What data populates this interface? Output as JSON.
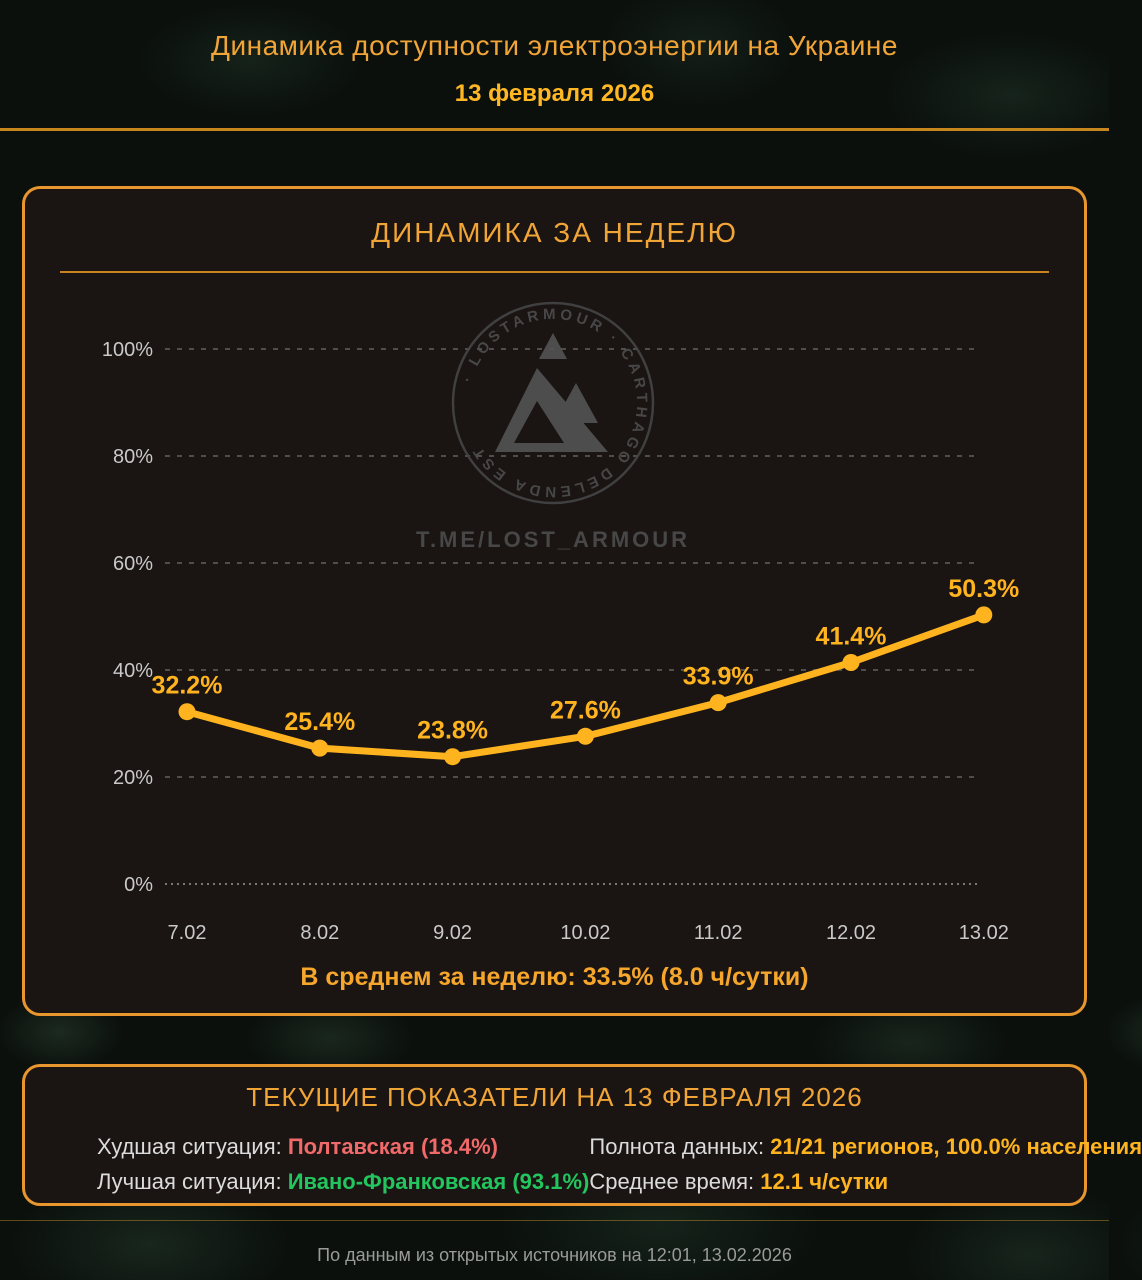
{
  "header": {
    "title": "Динамика доступности электроэнергии на Украине",
    "date": "13 февраля 2026"
  },
  "week_panel": {
    "title": "ДИНАМИКА ЗА НЕДЕЛЮ",
    "average_note": "В среднем за неделю: 33.5% (8.0 ч/сутки)"
  },
  "chart_data": {
    "type": "line",
    "title": "ДИНАМИКА ЗА НЕДЕЛЮ",
    "categories": [
      "7.02",
      "8.02",
      "9.02",
      "10.02",
      "11.02",
      "12.02",
      "13.02"
    ],
    "values": [
      32.2,
      25.4,
      23.8,
      27.6,
      33.9,
      41.4,
      50.3
    ],
    "value_labels": [
      "32.2%",
      "25.4%",
      "23.8%",
      "27.6%",
      "33.9%",
      "41.4%",
      "50.3%"
    ],
    "y_ticks": [
      0,
      20,
      40,
      60,
      80,
      100
    ],
    "y_tick_suffix": "%",
    "ylim": [
      0,
      100
    ],
    "xlabel": "",
    "ylabel": "",
    "grid": "horizontal-dashed",
    "legend": "none",
    "line_color": "#ffb41f",
    "point_color": "#ffb41f",
    "label_color": "#ffb41f",
    "axis_text_color": "#c9c9c9"
  },
  "watermark": {
    "ring_text": "· LOSTARMOUR ·  CARTHAGO  DELENDA  EST",
    "telegram": "T.ME/LOST_ARMOUR",
    "color": "#4d4d4d"
  },
  "current_panel": {
    "title": "ТЕКУЩИЕ ПОКАЗАТЕЛИ НА 13 ФЕВРАЛЯ 2026",
    "stats": [
      {
        "label": "Худшая ситуация:",
        "value": "Полтавская (18.4%)",
        "color": "#f06a6a"
      },
      {
        "label": "Лучшая ситуация:",
        "value": "Ивано-Франковская (93.1%)",
        "color": "#22c55e"
      },
      {
        "label": "Полнота данных:",
        "value": "21/21 регионов, 100.0% населения",
        "color": "#ffb41f"
      },
      {
        "label": "Среднее время:",
        "value": "12.1 ч/сутки",
        "color": "#ffb41f"
      }
    ]
  },
  "footer": {
    "source_note": "По данным из открытых источников на 12:01, 13.02.2026"
  },
  "colors": {
    "accent_amber": "#ffb41f",
    "panel_border": "#e8962e",
    "title_orange": "#f2a537",
    "date_yellow": "#ffb824",
    "worst_red": "#f06a6a",
    "best_green": "#22c55e",
    "axis_gray": "#c9c9c9",
    "footer_gray": "#9a9a9a",
    "watermark_gray": "#4d4d4d",
    "background": "#0b100d",
    "panel_background": "#1a1413"
  }
}
